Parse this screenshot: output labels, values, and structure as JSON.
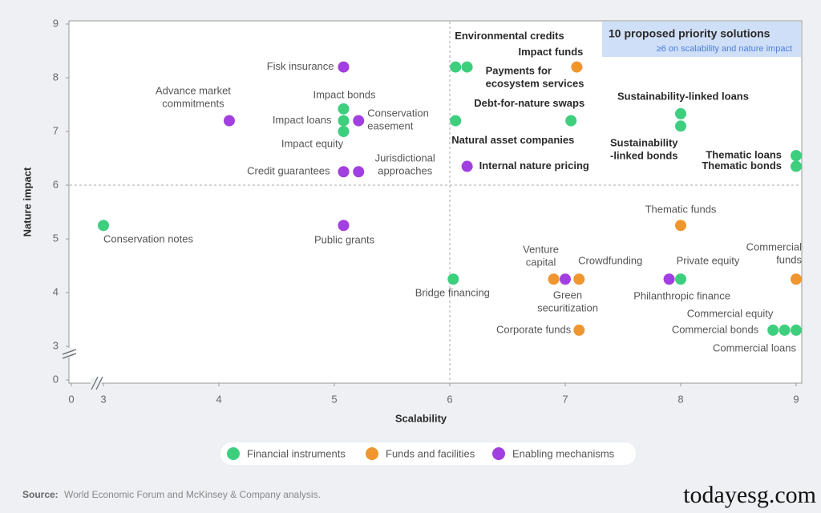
{
  "chart_data": {
    "type": "scatter",
    "xlabel": "Scalability",
    "ylabel": "Nature impact",
    "xlim": [
      0,
      9
    ],
    "ylim": [
      0,
      9
    ],
    "x_axis_break": [
      0,
      3
    ],
    "y_axis_break": [
      0,
      3
    ],
    "xticks": [
      0,
      3,
      4,
      5,
      6,
      7,
      8,
      9
    ],
    "yticks": [
      0,
      3,
      4,
      5,
      6,
      7,
      8,
      9
    ],
    "threshold_x": 6,
    "threshold_y": 6,
    "annotation": {
      "title": "10 proposed priority solutions",
      "subtitle": "≥6 on scalability and nature impact"
    },
    "series": [
      {
        "name": "Financial instruments",
        "color": "#3ecf7e",
        "labels": [
          "Environmental credits",
          "Payments for\necosystem services",
          "Debt-for-nature swaps",
          "Natural asset companies",
          "Sustainability-linked loans",
          "Sustainability\n-linked bonds",
          "Thematic loans",
          "Thematic bonds",
          "Impact bonds",
          "Impact loans",
          "Impact equity",
          "Conservation notes",
          "Bridge financing",
          "Private equity",
          "Commercial equity",
          "Commercial bonds",
          "Commercial loans"
        ],
        "x": [
          6.05,
          6.15,
          7.05,
          6.05,
          8,
          8,
          9,
          9,
          5.08,
          5.08,
          5.08,
          3,
          6.03,
          8,
          8.9,
          8.8,
          9
        ],
        "values": [
          8.2,
          8.2,
          7.2,
          7.2,
          7.33,
          7.1,
          6.55,
          6.35,
          7.42,
          7.2,
          7,
          5.25,
          4.25,
          4.25,
          3.3,
          3.3,
          3.3
        ],
        "highlighted": [
          true,
          true,
          true,
          true,
          true,
          true,
          true,
          true,
          false,
          false,
          false,
          false,
          false,
          false,
          false,
          false,
          false
        ]
      },
      {
        "name": "Funds and facilities",
        "color": "#f0962e",
        "labels": [
          "Impact funds",
          "Thematic funds",
          "Venture\ncapital",
          "Crowdfunding",
          "Corporate funds",
          "Commercial\nfunds"
        ],
        "x": [
          7.1,
          8,
          6.9,
          7.12,
          7.12,
          9
        ],
        "values": [
          8.2,
          5.25,
          4.25,
          4.25,
          3.3,
          4.25
        ],
        "highlighted": [
          true,
          false,
          false,
          false,
          false,
          false
        ]
      },
      {
        "name": "Enabling mechanisms",
        "color": "#a23fe0",
        "labels": [
          "Fisk insurance",
          "Advance market\ncommitments",
          "Conservation\neasement",
          "Credit guarantees",
          "Jurisdictional\napproaches",
          "Public grants",
          "Internal nature pricing",
          "Green\nsecuritization",
          "Philanthropic finance"
        ],
        "x": [
          5.08,
          4.09,
          5.21,
          5.08,
          5.21,
          5.08,
          6.15,
          7,
          7.9
        ],
        "values": [
          8.2,
          7.2,
          7.2,
          6.25,
          6.25,
          5.25,
          6.35,
          4.25,
          4.25
        ],
        "highlighted": [
          false,
          false,
          false,
          false,
          false,
          false,
          true,
          false,
          false
        ]
      }
    ]
  },
  "source": {
    "label": "Source:",
    "text": "World Economic Forum and McKinsey & Company analysis."
  },
  "watermark": "todayesg.com"
}
